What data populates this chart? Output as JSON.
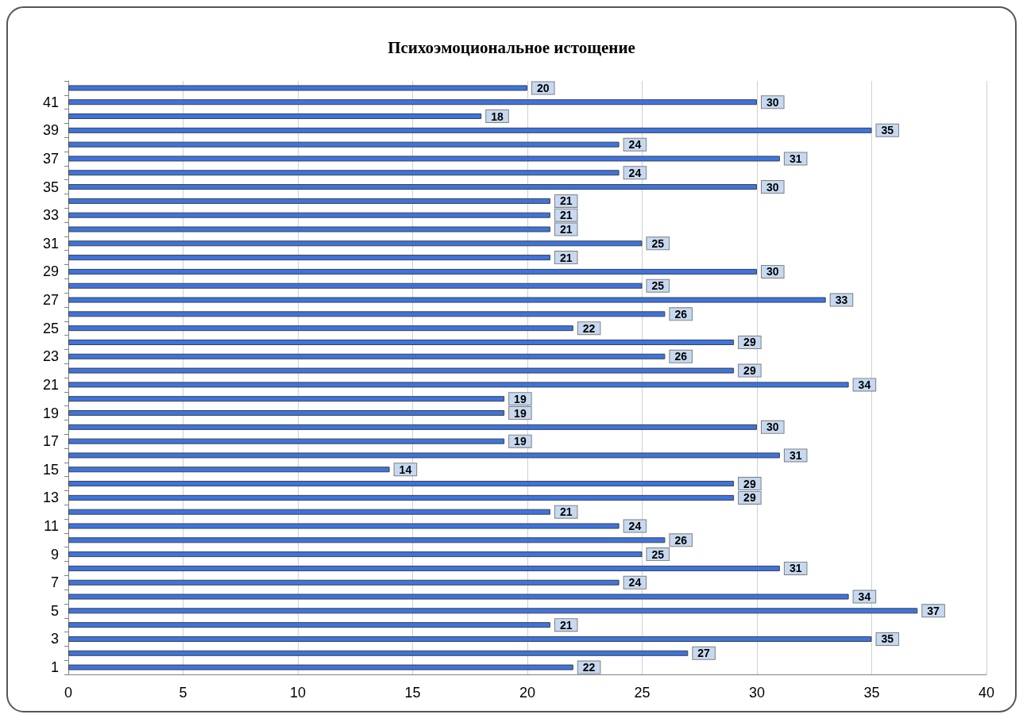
{
  "chart_data": {
    "type": "bar",
    "orientation": "horizontal",
    "title": "Психоэмоциональное истощение",
    "categories": [
      null,
      "41",
      null,
      "39",
      null,
      "37",
      null,
      "35",
      null,
      "33",
      null,
      "31",
      null,
      "29",
      null,
      "27",
      null,
      "25",
      null,
      "23",
      null,
      "21",
      null,
      "19",
      null,
      "17",
      null,
      "15",
      null,
      "13",
      null,
      "11",
      null,
      "9",
      null,
      "7",
      null,
      "5",
      null,
      "3",
      null,
      "1"
    ],
    "values": [
      20,
      30,
      18,
      35,
      24,
      31,
      24,
      30,
      21,
      21,
      21,
      25,
      21,
      30,
      25,
      33,
      26,
      22,
      29,
      26,
      29,
      34,
      19,
      19,
      30,
      19,
      31,
      14,
      29,
      29,
      21,
      24,
      26,
      25,
      31,
      24,
      34,
      37,
      21,
      35,
      27,
      22
    ],
    "color": "#3c74e0",
    "xlim": [
      0,
      40
    ],
    "xticks": [
      0,
      5,
      10,
      15,
      20,
      25,
      30,
      35,
      40
    ],
    "grid": "x",
    "data_labels": true
  }
}
